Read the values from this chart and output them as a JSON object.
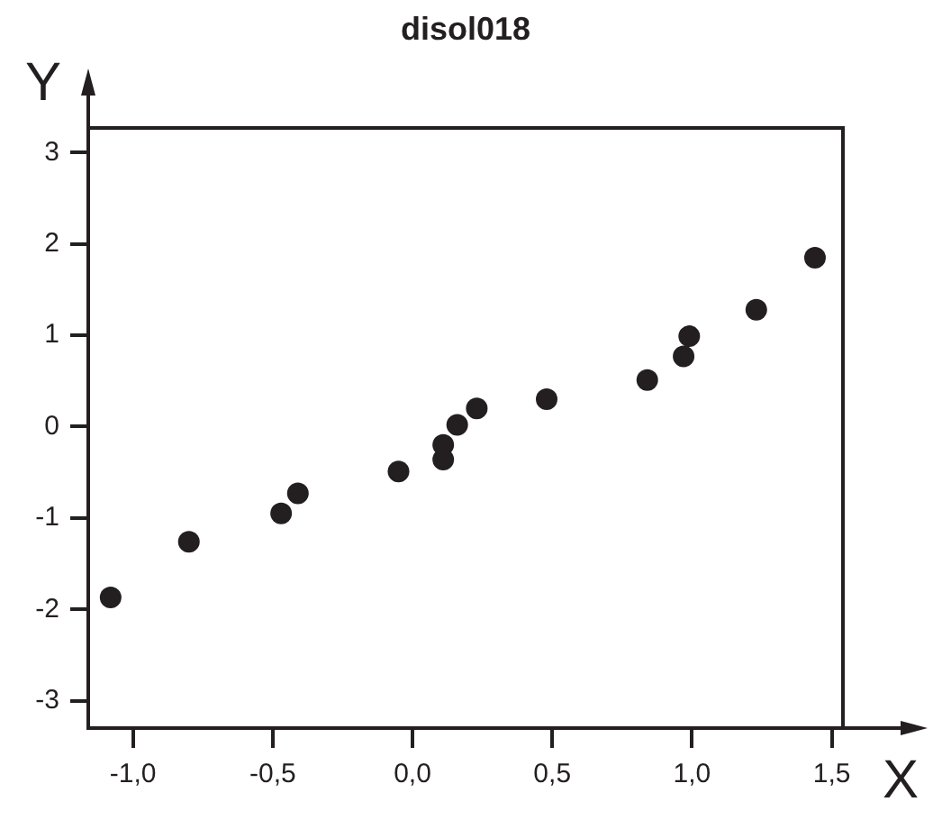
{
  "chart_data": {
    "type": "scatter",
    "title": "disol018",
    "xlabel": "X",
    "ylabel": "Y",
    "x": [
      -1.08,
      -0.8,
      -0.47,
      -0.41,
      -0.05,
      0.11,
      0.11,
      0.16,
      0.23,
      0.48,
      0.84,
      0.97,
      0.99,
      1.23,
      1.44
    ],
    "values": [
      -1.87,
      -1.26,
      -0.95,
      -0.73,
      -0.49,
      -0.36,
      -0.2,
      0.02,
      0.2,
      0.3,
      0.51,
      0.77,
      0.99,
      1.28,
      1.85
    ],
    "color": "#231f20",
    "marker": "circle",
    "xlim": [
      -1.16,
      1.54
    ],
    "xticks": [
      {
        "value": -1,
        "label": "-1,0"
      },
      {
        "value": -0.5,
        "label": "-0,5"
      },
      {
        "value": 0,
        "label": "0,0"
      },
      {
        "value": 0.5,
        "label": "0,5"
      },
      {
        "value": 1,
        "label": "1,0"
      },
      {
        "value": 1.5,
        "label": "1,5"
      }
    ],
    "ylim": [
      -3.3,
      3.27
    ],
    "yticks": [
      -3,
      -2,
      -1,
      0,
      1,
      2,
      3
    ],
    "grid": false,
    "legend": false
  }
}
